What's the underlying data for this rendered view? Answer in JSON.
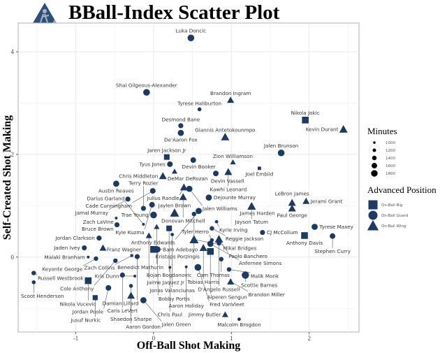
{
  "chart_data": {
    "type": "scatter",
    "title": "BBall-Index Scatter Plot",
    "xlabel": "Off-Ball Shot Making",
    "ylabel": "Self-Created Shot Making",
    "xlim": [
      -1.74,
      2.64
    ],
    "ylim": [
      -1.46,
      4.56
    ],
    "xticks": [
      -1,
      0,
      1,
      2
    ],
    "yticks": [
      0,
      2,
      4
    ],
    "grid": true,
    "color": "#1b3a66",
    "legend_placement": "right",
    "size_legend": {
      "title": "Minutes",
      "values": [
        1000,
        1200,
        1400,
        1600,
        1800
      ]
    },
    "shape_legend": {
      "title": "Advanced Position",
      "entries": [
        {
          "label": "On-Ball  Big",
          "shape": "square"
        },
        {
          "label": "On-Ball  Guard",
          "shape": "circle"
        },
        {
          "label": "On-Ball  Wing",
          "shape": "triangle"
        }
      ]
    },
    "points": [
      {
        "name": "Luka Doncic",
        "x": 0.48,
        "y": 4.27,
        "shape": "circle",
        "minutes": 1700
      },
      {
        "name": "Shai Gilgeous-Alexander",
        "x": -0.09,
        "y": 3.21,
        "shape": "circle",
        "minutes": 1700
      },
      {
        "name": "Brandon Ingram",
        "x": 0.99,
        "y": 3.06,
        "shape": "triangle",
        "minutes": 1500
      },
      {
        "name": "Tyrese Haliburton",
        "x": 0.59,
        "y": 2.88,
        "shape": "circle",
        "minutes": 1200
      },
      {
        "name": "Desmond Bane",
        "x": 0.35,
        "y": 2.56,
        "shape": "circle",
        "minutes": 1400
      },
      {
        "name": "De'Aaron Fox",
        "x": 0.35,
        "y": 2.42,
        "shape": "circle",
        "minutes": 1600
      },
      {
        "name": "Nikola Jokic",
        "x": 1.95,
        "y": 2.67,
        "shape": "square",
        "minutes": 1700
      },
      {
        "name": "Kevin Durant",
        "x": 2.44,
        "y": 2.49,
        "shape": "triangle",
        "minutes": 1700
      },
      {
        "name": "Giannis Antetokounmpo",
        "x": 0.92,
        "y": 2.34,
        "shape": "triangle",
        "minutes": 1700
      },
      {
        "name": "Jaren Jackson Jr",
        "x": 0.17,
        "y": 1.95,
        "shape": "square",
        "minutes": 1500
      },
      {
        "name": "Devin Booker",
        "x": 0.51,
        "y": 1.89,
        "shape": "circle",
        "minutes": 1500
      },
      {
        "name": "Tyus Jones",
        "x": 0.21,
        "y": 1.81,
        "shape": "circle",
        "minutes": 1500
      },
      {
        "name": "Zion Williamson",
        "x": 1.02,
        "y": 1.85,
        "shape": "triangle",
        "minutes": 1300
      },
      {
        "name": "Jalen Brunson",
        "x": 1.64,
        "y": 2.03,
        "shape": "circle",
        "minutes": 1700
      },
      {
        "name": "Joel Embiid",
        "x": 1.36,
        "y": 1.73,
        "shape": "square",
        "minutes": 1100
      },
      {
        "name": "DeMar DeRozan",
        "x": 0.27,
        "y": 1.67,
        "shape": "triangle",
        "minutes": 1300
      },
      {
        "name": "Chris Middleton",
        "x": 0.12,
        "y": 1.58,
        "shape": "triangle",
        "minutes": 1600
      },
      {
        "name": "Devin Vassell",
        "x": 0.8,
        "y": 1.63,
        "shape": "circle",
        "minutes": 1500
      },
      {
        "name": "Kawhi Leonard",
        "x": 0.96,
        "y": 1.66,
        "shape": "triangle",
        "minutes": 1600
      },
      {
        "name": "Austin Reaves",
        "x": -0.48,
        "y": 1.43,
        "shape": "circle",
        "minutes": 1600
      },
      {
        "name": "Julius Randle",
        "x": 0.39,
        "y": 1.36,
        "shape": "triangle",
        "minutes": 1600
      },
      {
        "name": "Jalen Williams",
        "x": 0.46,
        "y": 1.33,
        "shape": "circle",
        "minutes": 1600
      },
      {
        "name": "Cade Cunningham",
        "x": -0.01,
        "y": 1.29,
        "shape": "circle",
        "minutes": 1500
      },
      {
        "name": "Dejounte Murray",
        "x": 0.71,
        "y": 1.16,
        "shape": "circle",
        "minutes": 1600
      },
      {
        "name": "Jamal Murray",
        "x": -0.33,
        "y": 1.13,
        "shape": "circle",
        "minutes": 1400
      },
      {
        "name": "Donovan Mitchell",
        "x": 0.38,
        "y": 1.17,
        "shape": "triangle",
        "minutes": 1600
      },
      {
        "name": "James Harden",
        "x": 1.26,
        "y": 0.99,
        "shape": "triangle",
        "minutes": 1700
      },
      {
        "name": "Jayson Tatum",
        "x": 1.26,
        "y": 0.99,
        "shape": "triangle",
        "minutes": 1700
      },
      {
        "name": "LeBron James",
        "x": 1.78,
        "y": 1.06,
        "shape": "triangle",
        "minutes": 1600
      },
      {
        "name": "Jerami Grant",
        "x": 1.96,
        "y": 1.09,
        "shape": "triangle",
        "minutes": 1500
      },
      {
        "name": "Paul George",
        "x": 1.78,
        "y": 0.95,
        "shape": "triangle",
        "minutes": 1600
      },
      {
        "name": "Terry Rozier",
        "x": -0.13,
        "y": 0.95,
        "shape": "circle",
        "minutes": 1400
      },
      {
        "name": "Kyle Kuzma",
        "x": -0.02,
        "y": 1.02,
        "shape": "circle",
        "minutes": 1500
      },
      {
        "name": "Anthony Edwards",
        "x": 0.58,
        "y": 0.9,
        "shape": "circle",
        "minutes": 1600
      },
      {
        "name": "Kristaps Porzingis",
        "x": 0.52,
        "y": 0.84,
        "shape": "circle",
        "minutes": 1300
      },
      {
        "name": "Jaylen Brown",
        "x": 0.27,
        "y": 0.86,
        "shape": "triangle",
        "minutes": 1800
      },
      {
        "name": "Trae Young",
        "x": 0.0,
        "y": 0.82,
        "shape": "circle",
        "minutes": 1700
      },
      {
        "name": "Zach LaVine",
        "x": -0.48,
        "y": 0.76,
        "shape": "circle",
        "minutes": 1000
      },
      {
        "name": "Kyrie Irving",
        "x": 0.81,
        "y": 0.69,
        "shape": "circle",
        "minutes": 1100
      },
      {
        "name": "Bruce Brown",
        "x": -0.47,
        "y": 0.63,
        "shape": "circle",
        "minutes": 1400
      },
      {
        "name": "Darius Garland",
        "x": -0.13,
        "y": 0.64,
        "shape": "circle",
        "minutes": 1000
      },
      {
        "name": "Benedict Mathurin",
        "x": 0.04,
        "y": 0.59,
        "shape": "triangle",
        "minutes": 1300
      },
      {
        "name": "Bojan Bogdanovic",
        "x": 0.2,
        "y": 0.56,
        "shape": "square",
        "minutes": 1500
      },
      {
        "name": "Reggie Jackson",
        "x": 0.75,
        "y": 0.56,
        "shape": "circle",
        "minutes": 1300
      },
      {
        "name": "CJ McCollum",
        "x": 1.4,
        "y": 0.48,
        "shape": "circle",
        "minutes": 1400
      },
      {
        "name": "Tyrese Maxey",
        "x": 2.07,
        "y": 0.59,
        "shape": "circle",
        "minutes": 1600
      },
      {
        "name": "Anthony Davis",
        "x": 1.94,
        "y": 0.42,
        "shape": "square",
        "minutes": 1700
      },
      {
        "name": "Stephen Curry",
        "x": 2.3,
        "y": 0.41,
        "shape": "circle",
        "minutes": 1500
      },
      {
        "name": "Jordan Clarkson",
        "x": -0.7,
        "y": 0.37,
        "shape": "circle",
        "minutes": 1400
      },
      {
        "name": "Jaime Jaquez Jr",
        "x": -0.06,
        "y": 0.42,
        "shape": "triangle",
        "minutes": 1400
      },
      {
        "name": "Jonas Valanciunas",
        "x": 0.24,
        "y": 0.44,
        "shape": "circle",
        "minutes": 1100
      },
      {
        "name": "Mikal Bridges",
        "x": 0.52,
        "y": 0.34,
        "shape": "triangle",
        "minutes": 1800
      },
      {
        "name": "Paolo Banchero",
        "x": 0.84,
        "y": 0.35,
        "shape": "triangle",
        "minutes": 1700
      },
      {
        "name": "Jaden Ivey",
        "x": -0.89,
        "y": 0.18,
        "shape": "circle",
        "minutes": 1400
      },
      {
        "name": "Franz Wagner",
        "x": -0.65,
        "y": 0.18,
        "shape": "triangle",
        "minutes": 1500
      },
      {
        "name": "Bam Adebayo",
        "x": 0.0,
        "y": 0.15,
        "shape": "square",
        "minutes": 1700
      },
      {
        "name": "Bobby Portis",
        "x": 0.05,
        "y": 0.15,
        "shape": "circle",
        "minutes": 1600
      },
      {
        "name": "Anfernee Simons",
        "x": 0.73,
        "y": 0.26,
        "shape": "circle",
        "minutes": 1600
      },
      {
        "name": "D'Angelo Russell",
        "x": 0.84,
        "y": 0.27,
        "shape": "circle",
        "minutes": 1300
      },
      {
        "name": "Tyler Herro",
        "x": 0.75,
        "y": 0.33,
        "shape": "circle",
        "minutes": 1200
      },
      {
        "name": "Tobias Harris",
        "x": 0.64,
        "y": 0.18,
        "shape": "triangle",
        "minutes": 1600
      },
      {
        "name": "Alperen Sengun",
        "x": 0.73,
        "y": 0.11,
        "shape": "square",
        "minutes": 1700
      },
      {
        "name": "Malaki Branham",
        "x": -0.84,
        "y": 0.0,
        "shape": "circle",
        "minutes": 1000
      },
      {
        "name": "Zach Collins",
        "x": -0.28,
        "y": 0.03,
        "shape": "square",
        "minutes": 1000
      },
      {
        "name": "Damian Lillard",
        "x": -0.21,
        "y": 0.01,
        "shape": "circle",
        "minutes": 1400
      },
      {
        "name": "Keyonte George",
        "x": -0.74,
        "y": -0.03,
        "shape": "circle",
        "minutes": 1300
      },
      {
        "name": "Cole Anthony",
        "x": -0.49,
        "y": -0.07,
        "shape": "circle",
        "minutes": 1300
      },
      {
        "name": "Cam Thomas",
        "x": 0.87,
        "y": -0.04,
        "shape": "circle",
        "minutes": 1300
      },
      {
        "name": "Aaron Holiday",
        "x": 0.42,
        "y": -0.19,
        "shape": "circle",
        "minutes": 1000
      },
      {
        "name": "Chris Paul",
        "x": 0.21,
        "y": -0.2,
        "shape": "circle",
        "minutes": 1000
      },
      {
        "name": "Fred VanVleet",
        "x": 0.57,
        "y": -0.2,
        "shape": "circle",
        "minutes": 1700
      },
      {
        "name": "Russell Westbrook",
        "x": -1.54,
        "y": -0.31,
        "shape": "circle",
        "minutes": 1300
      },
      {
        "name": "Caris LeVert",
        "x": -0.4,
        "y": -0.35,
        "shape": "circle",
        "minutes": 1400
      },
      {
        "name": "Kris Dunn",
        "x": -0.24,
        "y": -0.37,
        "shape": "circle",
        "minutes": 1000
      },
      {
        "name": "Malik Monk",
        "x": 0.97,
        "y": -0.24,
        "shape": "circle",
        "minutes": 1300
      },
      {
        "name": "Scottie Barnes",
        "x": 1.18,
        "y": -0.35,
        "shape": "circle",
        "minutes": 1800
      },
      {
        "name": "Scoot Henderson",
        "x": -1.54,
        "y": -0.49,
        "shape": "circle",
        "minutes": 1200
      },
      {
        "name": "Nikola Vucevic",
        "x": -0.84,
        "y": -0.46,
        "shape": "square",
        "minutes": 1700
      },
      {
        "name": "Shaedon Sharpe",
        "x": -0.29,
        "y": -0.56,
        "shape": "circle",
        "minutes": 1200
      },
      {
        "name": "Brandon Miller",
        "x": 0.99,
        "y": -0.48,
        "shape": "triangle",
        "minutes": 1500
      },
      {
        "name": "Jordan Poole",
        "x": -0.58,
        "y": -0.6,
        "shape": "circle",
        "minutes": 1500
      },
      {
        "name": "Aaron Gordon",
        "x": -0.29,
        "y": -0.75,
        "shape": "triangle",
        "minutes": 1600
      },
      {
        "name": "Jusuf Nurkic",
        "x": -0.75,
        "y": -0.79,
        "shape": "square",
        "minutes": 1400
      },
      {
        "name": "Jalen Green",
        "x": -0.13,
        "y": -0.84,
        "shape": "circle",
        "minutes": 1600
      },
      {
        "name": "Jimmy Butler",
        "x": 0.92,
        "y": -1.12,
        "shape": "triangle",
        "minutes": 1400
      },
      {
        "name": "Malcolm Brogdon",
        "x": 1.1,
        "y": -1.21,
        "shape": "circle",
        "minutes": 1100
      }
    ]
  }
}
